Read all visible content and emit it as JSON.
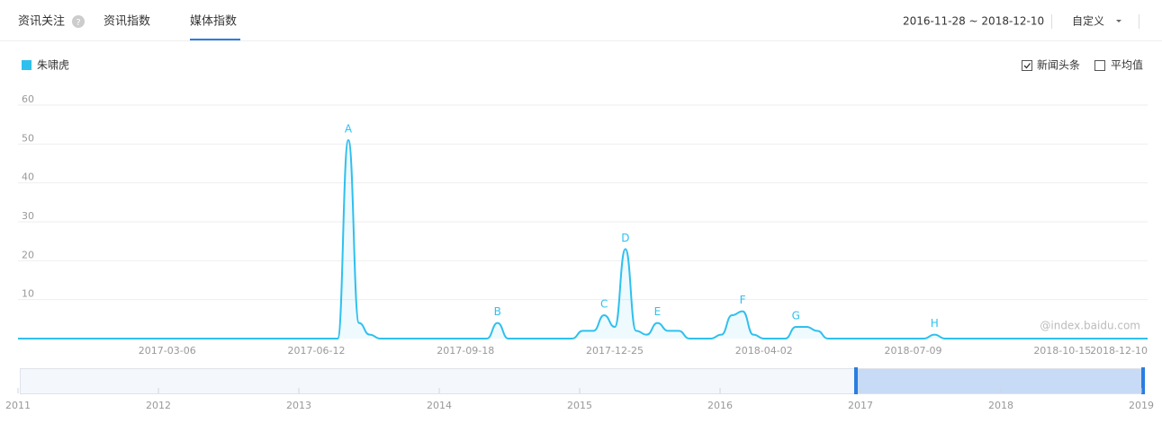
{
  "ui": {
    "tabs": [
      "资讯关注",
      "资讯指数",
      "媒体指数"
    ],
    "range_text": "2016-11-28 ~ 2018-12-10",
    "custom": "自定义",
    "options": [
      "新闻头条",
      "平均值"
    ],
    "watermark": "@index.baidu.com",
    "navigator_labels": [
      "2011",
      "2012",
      "2013",
      "2014",
      "2015",
      "2016",
      "2017",
      "2018",
      "2019"
    ]
  },
  "chart_data": {
    "type": "line",
    "x": [
      "2016-11-28",
      "2017-06-26",
      "2017-07-03",
      "2017-07-10",
      "2017-07-17",
      "2017-07-24",
      "2017-10-02",
      "2017-10-09",
      "2017-10-16",
      "2017-11-27",
      "2017-12-04",
      "2017-12-11",
      "2017-12-18",
      "2017-12-25",
      "2018-01-01",
      "2018-01-08",
      "2018-01-15",
      "2018-01-22",
      "2018-01-29",
      "2018-02-05",
      "2018-02-12",
      "2018-02-26",
      "2018-03-05",
      "2018-03-12",
      "2018-03-19",
      "2018-03-26",
      "2018-04-02",
      "2018-04-16",
      "2018-04-23",
      "2018-04-30",
      "2018-05-07",
      "2018-05-14",
      "2018-07-16",
      "2018-07-23",
      "2018-07-30",
      "2018-12-10"
    ],
    "series": [
      {
        "name": "朱啸虎",
        "color": "#2fc0ee",
        "values": [
          0,
          0,
          51,
          4,
          1,
          0,
          0,
          4,
          0,
          0,
          2,
          2,
          6,
          3,
          23,
          2,
          1,
          4,
          2,
          2,
          0,
          0,
          1,
          6,
          7,
          1,
          0,
          0,
          3,
          3,
          2,
          0,
          0,
          1,
          0,
          0
        ]
      }
    ],
    "annotations": [
      {
        "text": "A",
        "x": "2017-07-03"
      },
      {
        "text": "B",
        "x": "2017-10-09"
      },
      {
        "text": "C",
        "x": "2017-12-18"
      },
      {
        "text": "D",
        "x": "2018-01-01"
      },
      {
        "text": "E",
        "x": "2018-01-22"
      },
      {
        "text": "F",
        "x": "2018-03-19"
      },
      {
        "text": "G",
        "x": "2018-04-23"
      },
      {
        "text": "H",
        "x": "2018-07-23"
      }
    ],
    "xlim": [
      "2016-11-28",
      "2018-12-10"
    ],
    "xticks": [
      "2017-03-06",
      "2017-06-12",
      "2017-09-18",
      "2017-12-25",
      "2018-04-02",
      "2018-07-09",
      "2018-10-15",
      "2018-12-10"
    ],
    "ylim": [
      0,
      60
    ],
    "yticks": [
      10,
      20,
      30,
      40,
      50,
      60
    ],
    "grid": true
  }
}
